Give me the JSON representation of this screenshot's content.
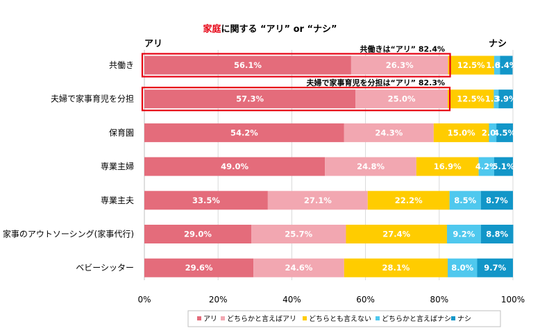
{
  "title": {
    "highlight": "家庭",
    "rest": "に関する “アリ” or “ナシ”"
  },
  "side_labels": {
    "left": "アリ",
    "right": "ナシ"
  },
  "annotations": [
    {
      "row": 0,
      "text": "共働きは“アリ” 82.4%"
    },
    {
      "row": 1,
      "text": "夫婦で家事育児を分担は“アリ” 82.3%"
    }
  ],
  "colors": {
    "アリ": "#e46c7b",
    "どちらかと言えばアリ": "#f2a7b1",
    "どちらとも言えない": "#ffcc00",
    "どちらかと言えばナシ": "#4fc8ee",
    "ナシ": "#1296c8",
    "highlight_box": "#e60012"
  },
  "chart_data": {
    "type": "bar",
    "orientation": "horizontal-stacked-100",
    "categories": [
      "共働き",
      "夫婦で家事育児を分担",
      "保育園",
      "専業主婦",
      "専業主夫",
      "家事のアウトソーシング(家事代行)",
      "ベビーシッター"
    ],
    "series": [
      {
        "name": "アリ",
        "values": [
          56.1,
          57.3,
          54.2,
          49.0,
          33.5,
          29.0,
          29.6
        ]
      },
      {
        "name": "どちらかと言えばアリ",
        "values": [
          26.3,
          25.0,
          24.3,
          24.8,
          27.1,
          25.7,
          24.6
        ]
      },
      {
        "name": "どちらとも言えない",
        "values": [
          12.5,
          12.5,
          15.0,
          16.9,
          22.2,
          27.4,
          28.1
        ]
      },
      {
        "name": "どちらかと言えばナシ",
        "values": [
          1.6,
          1.3,
          2.0,
          4.2,
          8.5,
          9.2,
          8.0
        ]
      },
      {
        "name": "ナシ",
        "values": [
          3.4,
          3.9,
          4.5,
          5.1,
          8.7,
          8.8,
          9.7
        ]
      }
    ],
    "xlim": [
      0,
      100
    ],
    "xticks": [
      "0%",
      "20%",
      "40%",
      "60%",
      "80%",
      "100%"
    ],
    "highlighted_rows": [
      0,
      1
    ],
    "legend": [
      "アリ",
      "どちらかと言えばアリ",
      "どちらとも言えない",
      "どちらかと言えばナシ",
      "ナシ"
    ],
    "legend_position": "bottom-right"
  }
}
